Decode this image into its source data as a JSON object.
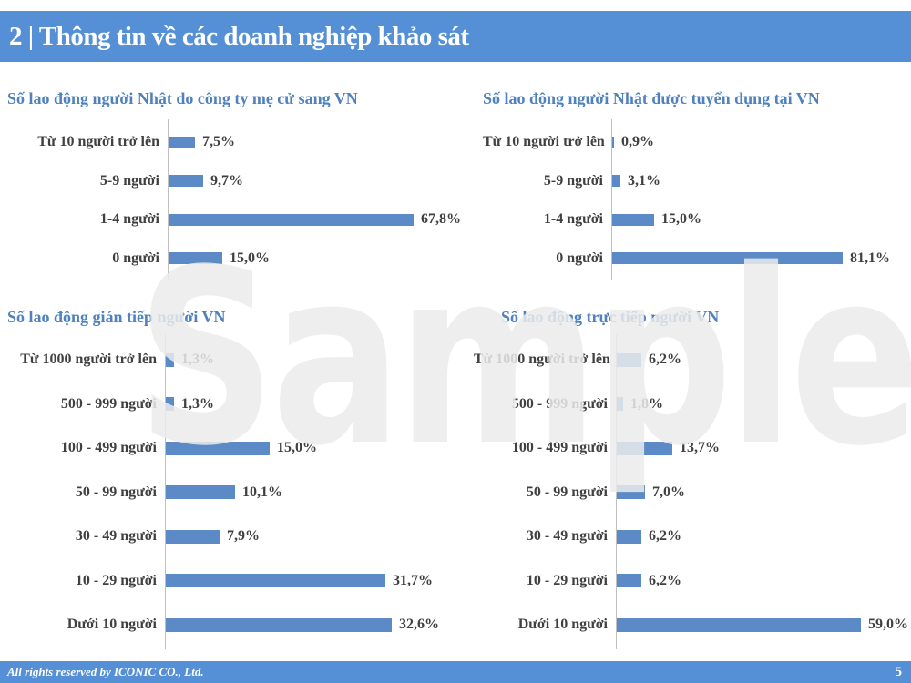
{
  "slide": {
    "title": "2 | Thông tin về các doanh nghiệp khảo sát",
    "watermark": "Sample",
    "footer_text": "All rights reserved by ICONIC CO., Ltd.",
    "page_number": "5"
  },
  "colors": {
    "header_bg": "#5590d6",
    "bar": "#5b8ac6",
    "chart_title": "#4e81bd",
    "axis_line": "#bfbfbf",
    "label_text": "#404040"
  },
  "chart_data": [
    {
      "type": "bar",
      "orientation": "horizontal",
      "title": "Số lao động người Nhật do công ty mẹ cử sang VN",
      "categories": [
        "Từ 10 người trở lên",
        "5-9 người",
        "1-4 người",
        "0 người"
      ],
      "values": [
        7.5,
        9.7,
        67.8,
        15.0
      ],
      "value_labels": [
        "7,5%",
        "9,7%",
        "67,8%",
        "15,0%"
      ],
      "xlim": [
        0,
        80
      ],
      "grid": false,
      "legend": false
    },
    {
      "type": "bar",
      "orientation": "horizontal",
      "title": "Số lao động người Nhật được tuyển dụng tại VN",
      "categories": [
        "Từ 10 người trở lên",
        "5-9 người",
        "1-4 người",
        "0 người"
      ],
      "values": [
        0.9,
        3.1,
        15.0,
        81.1
      ],
      "value_labels": [
        "0,9%",
        "3,1%",
        "15,0%",
        "81,1%"
      ],
      "xlim": [
        0,
        90
      ],
      "grid": false,
      "legend": false
    },
    {
      "type": "bar",
      "orientation": "horizontal",
      "title": "Số lao động gián tiếp người VN",
      "categories": [
        "Từ 1000 người trở lên",
        "500 - 999 người",
        "100 - 499 người",
        "50 - 99 người",
        "30 - 49 người",
        "10 - 29 người",
        "Dưới 10 người"
      ],
      "values": [
        1.3,
        1.3,
        15.0,
        10.1,
        7.9,
        31.7,
        32.6
      ],
      "value_labels": [
        "1,3%",
        "1,3%",
        "15,0%",
        "10,1%",
        "7,9%",
        "31,7%",
        "32,6%"
      ],
      "xlim": [
        0,
        35
      ],
      "grid": false,
      "legend": false
    },
    {
      "type": "bar",
      "orientation": "horizontal",
      "title": "Số lao động trực tiếp người VN",
      "categories": [
        "Từ 1000 người trở lên",
        "500 - 999 người",
        "100 - 499 người",
        "50 - 99 người",
        "30 - 49 người",
        "10 - 29 người",
        "Dưới 10 người"
      ],
      "values": [
        6.2,
        1.8,
        13.7,
        7.0,
        6.2,
        6.2,
        59.0
      ],
      "value_labels": [
        "6,2%",
        "1,8%",
        "13,7%",
        "7,0%",
        "6,2%",
        "6,2%",
        "59,0%"
      ],
      "xlim": [
        0,
        65
      ],
      "grid": false,
      "legend": false
    }
  ]
}
